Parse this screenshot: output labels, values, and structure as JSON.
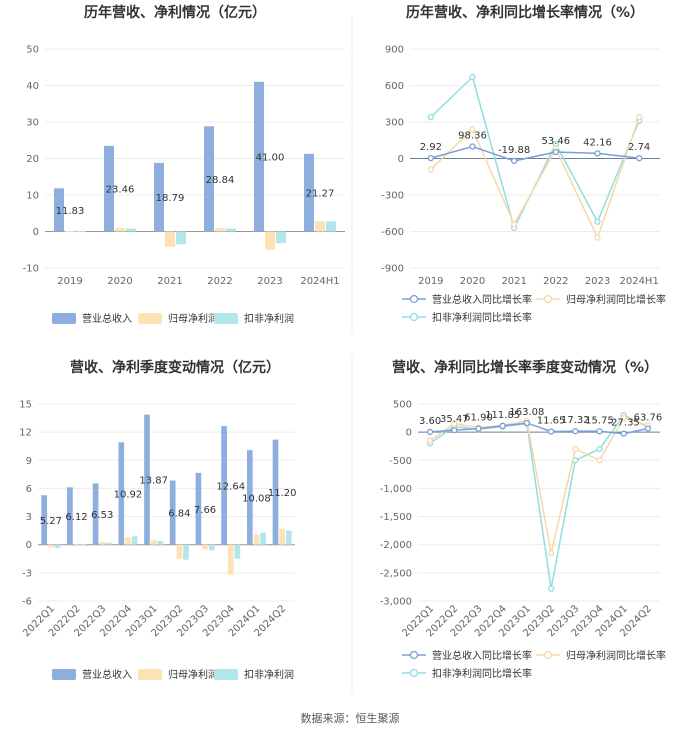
{
  "source_text": "数据来源：恒生聚源",
  "chart_data": [
    {
      "type": "bar",
      "title": "历年营收、净利情况（亿元）",
      "categories": [
        "2019",
        "2020",
        "2021",
        "2022",
        "2023",
        "2024H1"
      ],
      "series": [
        {
          "name": "营业总收入",
          "color": "#8eaede",
          "values": [
            11.83,
            23.46,
            18.79,
            28.84,
            41.0,
            21.27
          ]
        },
        {
          "name": "归母净利润",
          "color": "#fde2b5",
          "values": [
            0.1,
            1.0,
            -4.2,
            1.0,
            -5.0,
            2.8
          ]
        },
        {
          "name": "扣非净利润",
          "color": "#b3e6e8",
          "values": [
            0.1,
            0.8,
            -3.5,
            0.8,
            -3.2,
            2.8
          ]
        }
      ],
      "data_labels": [
        "11.83",
        "23.46",
        "18.79",
        "28.84",
        "41.00",
        "21.27"
      ],
      "ylim": [
        -10,
        50
      ],
      "yticks": [
        "-10",
        "0",
        "10",
        "20",
        "30",
        "40",
        "50"
      ],
      "legend_position": "bottom"
    },
    {
      "type": "line",
      "title": "历年营收、净利同比增长率情况（%）",
      "categories": [
        "2019",
        "2020",
        "2021",
        "2022",
        "2023",
        "2024H1"
      ],
      "series": [
        {
          "name": "营业总收入同比增长率",
          "color": "#7b9fd6",
          "values": [
            2.92,
            98.36,
            -19.88,
            53.46,
            42.16,
            2.74
          ]
        },
        {
          "name": "归母净利润同比增长率",
          "color": "#f9d6a8",
          "values": [
            -90,
            240,
            -540,
            80,
            -650,
            340
          ]
        },
        {
          "name": "扣非净利润同比增长率",
          "color": "#8fdde3",
          "values": [
            340,
            670,
            -570,
            120,
            -520,
            310
          ]
        }
      ],
      "data_labels": [
        "2.92",
        "98.36",
        "-19.88",
        "53.46",
        "42.16",
        "2.74"
      ],
      "ylim": [
        -900,
        900
      ],
      "yticks": [
        "-900",
        "-600",
        "-300",
        "0",
        "300",
        "600",
        "900"
      ],
      "legend_position": "bottom"
    },
    {
      "type": "bar",
      "title": "营收、净利季度变动情况（亿元）",
      "categories": [
        "2022Q1",
        "2022Q2",
        "2022Q3",
        "2022Q4",
        "2023Q1",
        "2023Q2",
        "2023Q3",
        "2023Q4",
        "2024Q1",
        "2024Q2"
      ],
      "series": [
        {
          "name": "营业总收入",
          "color": "#8eaede",
          "values": [
            5.27,
            6.12,
            6.53,
            10.92,
            13.87,
            6.84,
            7.66,
            12.64,
            10.08,
            11.2
          ]
        },
        {
          "name": "归母净利润",
          "color": "#fde2b5",
          "values": [
            -0.3,
            0.1,
            0.3,
            0.8,
            0.5,
            -1.5,
            -0.5,
            -3.2,
            1.1,
            1.7
          ]
        },
        {
          "name": "扣非净利润",
          "color": "#b3e6e8",
          "values": [
            -0.35,
            0.05,
            0.2,
            0.9,
            0.4,
            -1.6,
            -0.6,
            -1.5,
            1.3,
            1.5
          ]
        }
      ],
      "data_labels": [
        "5.27",
        "6.12",
        "6.53",
        "10.92",
        "13.87",
        "6.84",
        "7.66",
        "12.64",
        "10.08",
        "11.20"
      ],
      "ylim": [
        -6,
        15
      ],
      "yticks": [
        "-6",
        "-3",
        "0",
        "3",
        "6",
        "9",
        "12",
        "15"
      ],
      "legend_position": "bottom"
    },
    {
      "type": "line",
      "title": "营收、净利同比增长率季度变动情况（%）",
      "categories": [
        "2022Q1",
        "2022Q2",
        "2022Q3",
        "2022Q4",
        "2023Q1",
        "2023Q2",
        "2023Q3",
        "2023Q4",
        "2024Q1",
        "2024Q2"
      ],
      "series": [
        {
          "name": "营业总收入同比增长率",
          "color": "#7b9fd6",
          "values": [
            3.6,
            35.47,
            61.9,
            111.85,
            163.08,
            11.65,
            17.32,
            15.75,
            -27.35,
            63.76
          ]
        },
        {
          "name": "归母净利润同比增长率",
          "color": "#f9d6a8",
          "values": [
            -150,
            150,
            80,
            120,
            200,
            -2150,
            -300,
            -500,
            250,
            120
          ]
        },
        {
          "name": "扣非净利润同比增长率",
          "color": "#8fdde3",
          "values": [
            -200,
            100,
            50,
            100,
            150,
            -2780,
            -500,
            -300,
            300,
            90
          ]
        }
      ],
      "data_labels": [
        "3.60",
        "35.47",
        "61.90",
        "111.85",
        "163.08",
        "11.65",
        "17.32",
        "15.75",
        "-27.35",
        "63.76"
      ],
      "ylim": [
        -3000,
        500
      ],
      "yticks": [
        "-3,000",
        "-2,500",
        "-2,000",
        "-1,500",
        "-1,000",
        "-500",
        "0",
        "500"
      ],
      "legend_position": "bottom"
    }
  ]
}
